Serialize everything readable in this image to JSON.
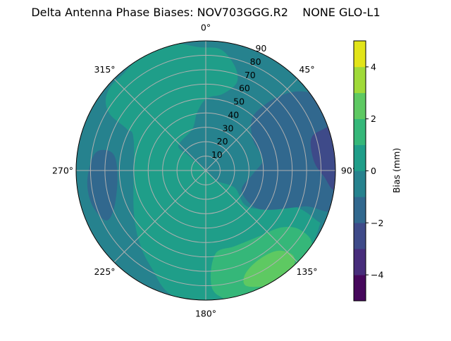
{
  "chart_data": {
    "type": "heatmap",
    "subtype": "polar-filled-contour",
    "title": "Delta Antenna Phase Biases: NOV703GGG.R2    NONE GLO-L1",
    "angular_axis": {
      "direction": "clockwise",
      "zero_location": "north",
      "tick_labels": [
        {
          "angle": 0,
          "label": "0°"
        },
        {
          "angle": 45,
          "label": "45°"
        },
        {
          "angle": 90,
          "label": "90°"
        },
        {
          "angle": 135,
          "label": "135°"
        },
        {
          "angle": 180,
          "label": "180°"
        },
        {
          "angle": 225,
          "label": "225°"
        },
        {
          "angle": 270,
          "label": "270°"
        },
        {
          "angle": 315,
          "label": "315°"
        }
      ]
    },
    "radial_axis": {
      "range": [
        0,
        90
      ],
      "label_angle": 22.5,
      "ticks": [
        10,
        20,
        30,
        40,
        50,
        60,
        70,
        80,
        90
      ],
      "tick_labels": [
        "10",
        "20",
        "30",
        "40",
        "50",
        "60",
        "70",
        "80",
        "90"
      ]
    },
    "grid": true,
    "colorbar": {
      "label": "Bias (mm)",
      "range": [
        -5,
        5
      ],
      "ticks": [
        4,
        2,
        0,
        -2,
        -4
      ],
      "tick_labels": [
        "4",
        "2",
        "0",
        "−2",
        "−4"
      ],
      "levels": [
        {
          "min": -5,
          "max": -4,
          "color": "#46085c"
        },
        {
          "min": -4,
          "max": -3,
          "color": "#472d7b"
        },
        {
          "min": -3,
          "max": -2,
          "color": "#3e4a89"
        },
        {
          "min": -2,
          "max": -1,
          "color": "#31688e"
        },
        {
          "min": -1,
          "max": 0,
          "color": "#26828e"
        },
        {
          "min": 0,
          "max": 1,
          "color": "#1f9e89"
        },
        {
          "min": 1,
          "max": 2,
          "color": "#35b779"
        },
        {
          "min": 2,
          "max": 3,
          "color": "#5ec962"
        },
        {
          "min": 3,
          "max": 4,
          "color": "#a0da39"
        },
        {
          "min": 4,
          "max": 5,
          "color": "#e2e418"
        }
      ]
    },
    "background_level": -0.5,
    "regions_note_units": "points are [east, north] offsets in zenith degrees",
    "regions": [
      {
        "level": 0.5,
        "name": "region-0-to-1",
        "points": [
          [
            -5.2,
            85.7
          ],
          [
            10.3,
            84.1
          ],
          [
            20.0,
            72.7
          ],
          [
            21.6,
            61.3
          ],
          [
            11.9,
            53.2
          ],
          [
            0.5,
            50.0
          ],
          [
            -6.0,
            40.2
          ],
          [
            -9.3,
            28.8
          ],
          [
            -19.0,
            17.4
          ],
          [
            -12.5,
            10.9
          ],
          [
            0,
            0
          ],
          [
            7.0,
            -7.0
          ],
          [
            20.0,
            -11.9
          ],
          [
            26.5,
            -23.3
          ],
          [
            36.3,
            -26.5
          ],
          [
            60.7,
            -24.9
          ],
          [
            77.0,
            -34.7
          ],
          [
            78.6,
            -39.5
          ],
          [
            68.8,
            -62.3
          ],
          [
            52.6,
            -85.1
          ],
          [
            0,
            -94.9
          ],
          [
            -25.5,
            -85.1
          ],
          [
            -36.9,
            -68.8
          ],
          [
            -45.1,
            -52.6
          ],
          [
            -50.0,
            -28.1
          ],
          [
            -50.0,
            20.7
          ],
          [
            -54.8,
            28.8
          ],
          [
            -66.2,
            38.6
          ],
          [
            -69.5,
            48.3
          ],
          [
            -66.2,
            58.1
          ],
          [
            -58.1,
            66.2
          ],
          [
            -45.1,
            79.2
          ],
          [
            -28.8,
            89.0
          ]
        ]
      },
      {
        "level": -1.5,
        "name": "region-minus2-to-minus1-east",
        "points": [
          [
            34.7,
            40.2
          ],
          [
            47.7,
            50.0
          ],
          [
            62.3,
            54.8
          ],
          [
            75.3,
            53.2
          ],
          [
            93.2,
            45.1
          ],
          [
            93.2,
            -23.3
          ],
          [
            68.8,
            -24.9
          ],
          [
            44.4,
            -27.3
          ],
          [
            33.0,
            -24.9
          ],
          [
            24.9,
            -13.5
          ],
          [
            33.0,
            -2.1
          ],
          [
            39.5,
            7.6
          ],
          [
            33.0,
            20.7
          ],
          [
            31.4,
            32.0
          ]
        ]
      },
      {
        "level": -2.5,
        "name": "region-minus3-to-minus2-east",
        "points": [
          [
            78.6,
            27.2
          ],
          [
            72.9,
            20.7
          ],
          [
            75.3,
            6.0
          ],
          [
            81.8,
            -3.7
          ],
          [
            90.0,
            -11.9
          ],
          [
            93.2,
            28.8
          ]
        ]
      },
      {
        "level": -1.5,
        "name": "region-minus2-to-minus1-west",
        "points": [
          [
            -69.5,
            14.2
          ],
          [
            -77.6,
            10.9
          ],
          [
            -82.2,
            -7.0
          ],
          [
            -79.2,
            -23.3
          ],
          [
            -69.5,
            -34.7
          ],
          [
            -63.8,
            -26.5
          ],
          [
            -61.3,
            -7.0
          ],
          [
            -63.0,
            9.3
          ]
        ]
      },
      {
        "level": 1.5,
        "name": "region-1-to-2-southeast",
        "points": [
          [
            7.0,
            -57.4
          ],
          [
            3.4,
            -75.3
          ],
          [
            8.6,
            -86.7
          ],
          [
            29.8,
            -91.6
          ],
          [
            62.3,
            -77.0
          ],
          [
            73.7,
            -52.6
          ],
          [
            65.6,
            -41.2
          ],
          [
            52.6,
            -39.5
          ],
          [
            36.3,
            -46.0
          ],
          [
            20.0,
            -52.6
          ]
        ]
      },
      {
        "level": 2.5,
        "name": "region-2-to-3-southeast",
        "points": [
          [
            27.3,
            -72.1
          ],
          [
            27.8,
            -79.9
          ],
          [
            41.2,
            -80.2
          ],
          [
            55.8,
            -75.3
          ],
          [
            61.5,
            -65.6
          ],
          [
            59.9,
            -58.3
          ],
          [
            49.3,
            -55.8
          ],
          [
            36.3,
            -62.3
          ]
        ]
      }
    ]
  }
}
